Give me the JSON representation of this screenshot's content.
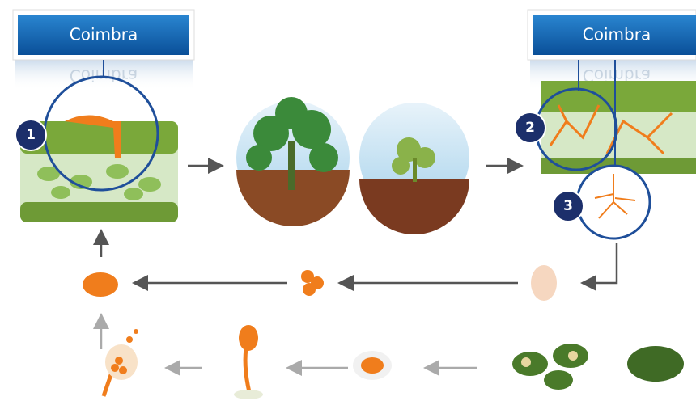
{
  "callouts": [
    {
      "label": "Coimbra"
    },
    {
      "label": "Coimbra"
    }
  ],
  "markers": [
    "1",
    "2",
    "3"
  ]
}
